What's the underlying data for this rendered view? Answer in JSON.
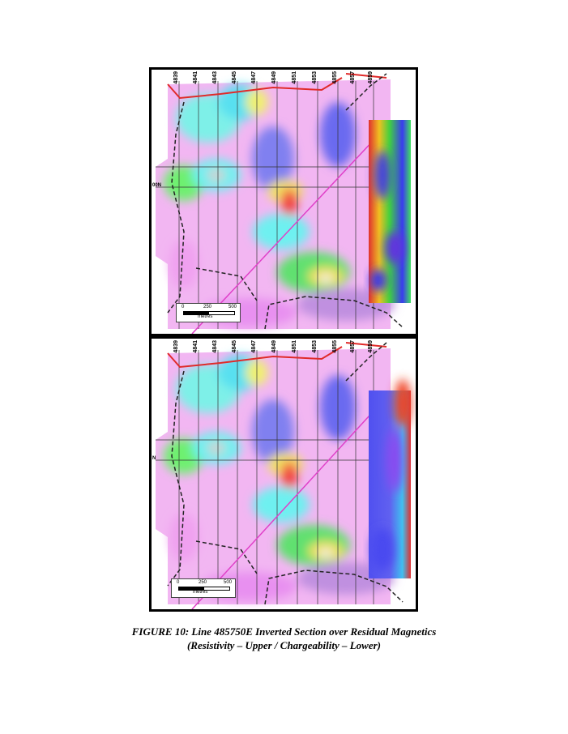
{
  "figure": {
    "title": "FIGURE 10: Line 485750E Inverted Section over Residual Magnetics",
    "subtitle": "(Resistivity – Upper / Chargeability – Lower)"
  },
  "panels": [
    {
      "id": "upper",
      "grid_line_labels": [
        "4839",
        "4841",
        "4843",
        "4845",
        "4847",
        "4849",
        "4851",
        "4853",
        "4855",
        "4857",
        "4859"
      ],
      "northing_label": "00N",
      "scale": {
        "start": "0",
        "mid": "250",
        "end": "500",
        "unit": "metres"
      }
    },
    {
      "id": "lower",
      "grid_line_labels": [
        "4839",
        "4841",
        "4843",
        "4845",
        "4847",
        "4849",
        "4851",
        "4853",
        "4855",
        "4857",
        "4859"
      ],
      "northing_label": "N",
      "scale": {
        "start": "0",
        "mid": "250",
        "end": "500",
        "unit": "metres"
      }
    }
  ],
  "colors": {
    "magenta_low": "#f0a8f0",
    "blue_mid": "#6a6af0",
    "cyan": "#6ef0f0",
    "green": "#5ef06a",
    "yellow": "#f0f05a",
    "red_high": "#e02020",
    "road": "#e02a2a",
    "survey_line": "#e040c8",
    "boundary": "#222222"
  }
}
